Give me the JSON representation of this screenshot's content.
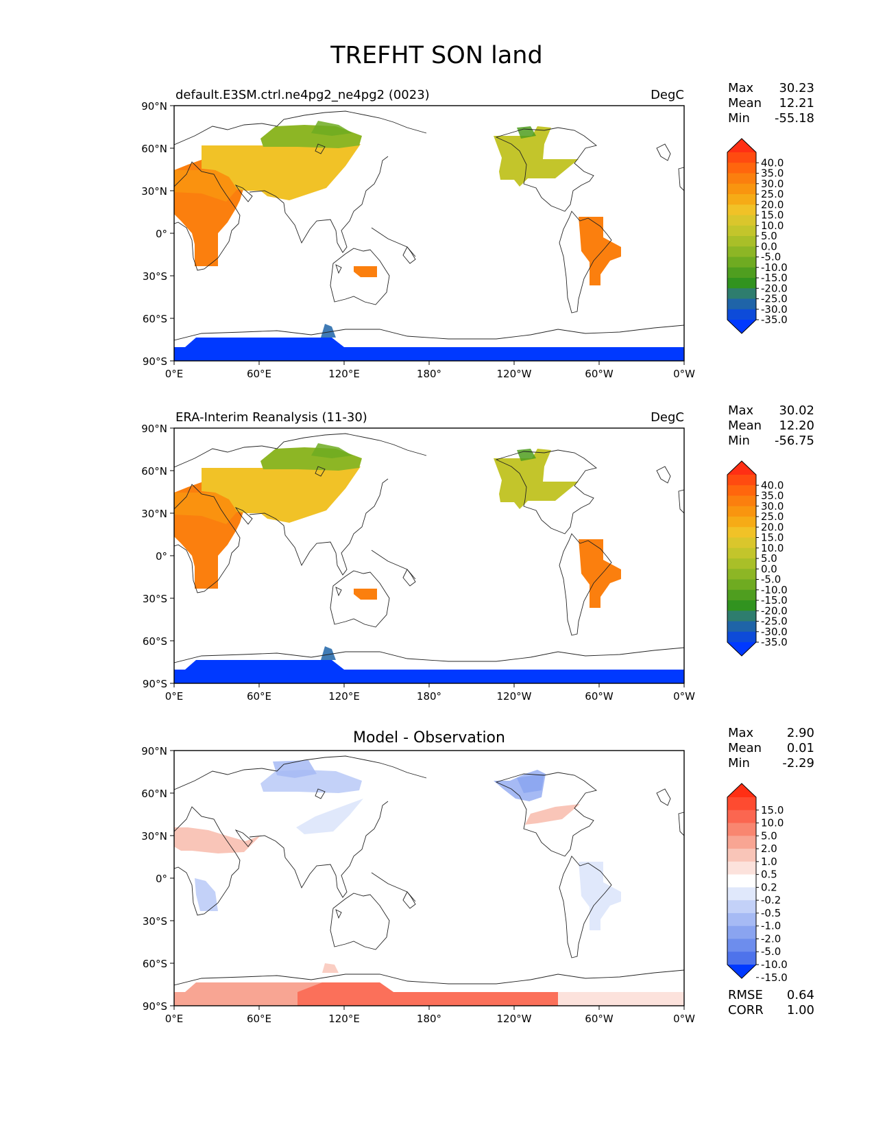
{
  "figure_title": "TREFHT SON land",
  "panels": [
    {
      "id": "test",
      "title_left": "default.E3SM.ctrl.ne4pg2_ne4pg2 (0023)",
      "title_center": "",
      "units": "DegC",
      "stats": {
        "labels": [
          "Max",
          "Mean",
          "Min"
        ],
        "values": [
          "30.23",
          "12.21",
          "-55.18"
        ]
      },
      "colorbar": {
        "levels": [
          "40.0",
          "35.0",
          "30.0",
          "25.0",
          "20.0",
          "15.0",
          "10.0",
          "5.0",
          "0.0",
          "-5.0",
          "-10.0",
          "-15.0",
          "-20.0",
          "-25.0",
          "-30.0",
          "-35.0"
        ],
        "colors": [
          "#ff2f14",
          "#ff4b10",
          "#ff660d",
          "#fb7f0e",
          "#f9950f",
          "#f6ab16",
          "#f1c227",
          "#dac62c",
          "#c3c52b",
          "#a9bf28",
          "#8db625",
          "#6fab21",
          "#4f9e1f",
          "#31931f",
          "#2e7d6e",
          "#1f64a8",
          "#0d4bd9",
          "#0039ff"
        ],
        "extend": "both"
      },
      "regions": [
        {
          "name": "africa-europe",
          "value": 27,
          "color": "#fb7f0e"
        },
        {
          "name": "asia",
          "value": 12,
          "color": "#f1c227"
        },
        {
          "name": "siberia",
          "value": -8,
          "color": "#8db625"
        },
        {
          "name": "north-america",
          "value": 5,
          "color": "#c3c52b"
        },
        {
          "name": "south-america",
          "value": 25,
          "color": "#fb7f0e"
        },
        {
          "name": "australia",
          "value": 25,
          "color": "#fb7f0e"
        },
        {
          "name": "antarctica",
          "value": -40,
          "color": "#0039ff"
        }
      ],
      "rmse_corr": null
    },
    {
      "id": "reference",
      "title_left": "ERA-Interim Reanalysis (11-30)",
      "title_center": "",
      "units": "DegC",
      "stats": {
        "labels": [
          "Max",
          "Mean",
          "Min"
        ],
        "values": [
          "30.02",
          "12.20",
          "-56.75"
        ]
      },
      "colorbar": {
        "levels": [
          "40.0",
          "35.0",
          "30.0",
          "25.0",
          "20.0",
          "15.0",
          "10.0",
          "5.0",
          "0.0",
          "-5.0",
          "-10.0",
          "-15.0",
          "-20.0",
          "-25.0",
          "-30.0",
          "-35.0"
        ],
        "colors": [
          "#ff2f14",
          "#ff4b10",
          "#ff660d",
          "#fb7f0e",
          "#f9950f",
          "#f6ab16",
          "#f1c227",
          "#dac62c",
          "#c3c52b",
          "#a9bf28",
          "#8db625",
          "#6fab21",
          "#4f9e1f",
          "#31931f",
          "#2e7d6e",
          "#1f64a8",
          "#0d4bd9",
          "#0039ff"
        ],
        "extend": "both"
      },
      "regions": [
        {
          "name": "africa-europe",
          "value": 27,
          "color": "#fb7f0e"
        },
        {
          "name": "asia",
          "value": 12,
          "color": "#f1c227"
        },
        {
          "name": "siberia",
          "value": -8,
          "color": "#8db625"
        },
        {
          "name": "north-america",
          "value": 5,
          "color": "#c3c52b"
        },
        {
          "name": "south-america",
          "value": 25,
          "color": "#fb7f0e"
        },
        {
          "name": "australia",
          "value": 25,
          "color": "#fb7f0e"
        },
        {
          "name": "antarctica",
          "value": -40,
          "color": "#0039ff"
        }
      ],
      "rmse_corr": null
    },
    {
      "id": "difference",
      "title_left": "",
      "title_center": "Model - Observation",
      "units": "",
      "stats": {
        "labels": [
          "Max",
          "Mean",
          "Min"
        ],
        "values": [
          "2.90",
          "0.01",
          "-2.29"
        ]
      },
      "colorbar": {
        "levels": [
          "15.0",
          "10.0",
          "5.0",
          "2.0",
          "1.0",
          "0.5",
          "0.2",
          "-0.2",
          "-0.5",
          "-1.0",
          "-2.0",
          "-5.0",
          "-10.0",
          "-15.0"
        ],
        "colors": [
          "#ff2f14",
          "#fe4b30",
          "#fb6650",
          "#f98670",
          "#f8a593",
          "#f9c5b8",
          "#fce2dc",
          "#ffffff",
          "#e0e8fb",
          "#c3d1f8",
          "#a6baf4",
          "#8aa4f0",
          "#6d8ded",
          "#4e73eb",
          "#0039ff"
        ],
        "extend": "both"
      },
      "regions": [
        {
          "name": "north-africa",
          "value": 0.7,
          "color": "#f9c5b8"
        },
        {
          "name": "central-africa",
          "value": -0.7,
          "color": "#c3d1f8"
        },
        {
          "name": "siberia",
          "value": -0.7,
          "color": "#c3d1f8"
        },
        {
          "name": "east-asia",
          "value": -0.3,
          "color": "#e0e8fb"
        },
        {
          "name": "canada",
          "value": -1.0,
          "color": "#a6baf4"
        },
        {
          "name": "eastern-usa",
          "value": 0.6,
          "color": "#f9c5b8"
        },
        {
          "name": "south-america",
          "value": -0.3,
          "color": "#e0e8fb"
        },
        {
          "name": "antarctica-east",
          "value": 1.5,
          "color": "#f8a593"
        },
        {
          "name": "antarctica-west",
          "value": 0.3,
          "color": "#fce2dc"
        }
      ],
      "rmse_corr": {
        "labels": [
          "RMSE",
          "CORR"
        ],
        "values": [
          "0.64",
          "1.00"
        ]
      }
    }
  ],
  "axes": {
    "lat_ticks": [
      "90°N",
      "60°N",
      "30°N",
      "0°",
      "30°S",
      "60°S",
      "90°S"
    ],
    "lon_ticks": [
      "0°E",
      "60°E",
      "120°E",
      "180°",
      "120°W",
      "60°W",
      "0°W"
    ],
    "lat_range": [
      -90,
      90
    ],
    "lon_range": [
      0,
      360
    ],
    "projection": "PlateCarree, central longitude 180"
  }
}
